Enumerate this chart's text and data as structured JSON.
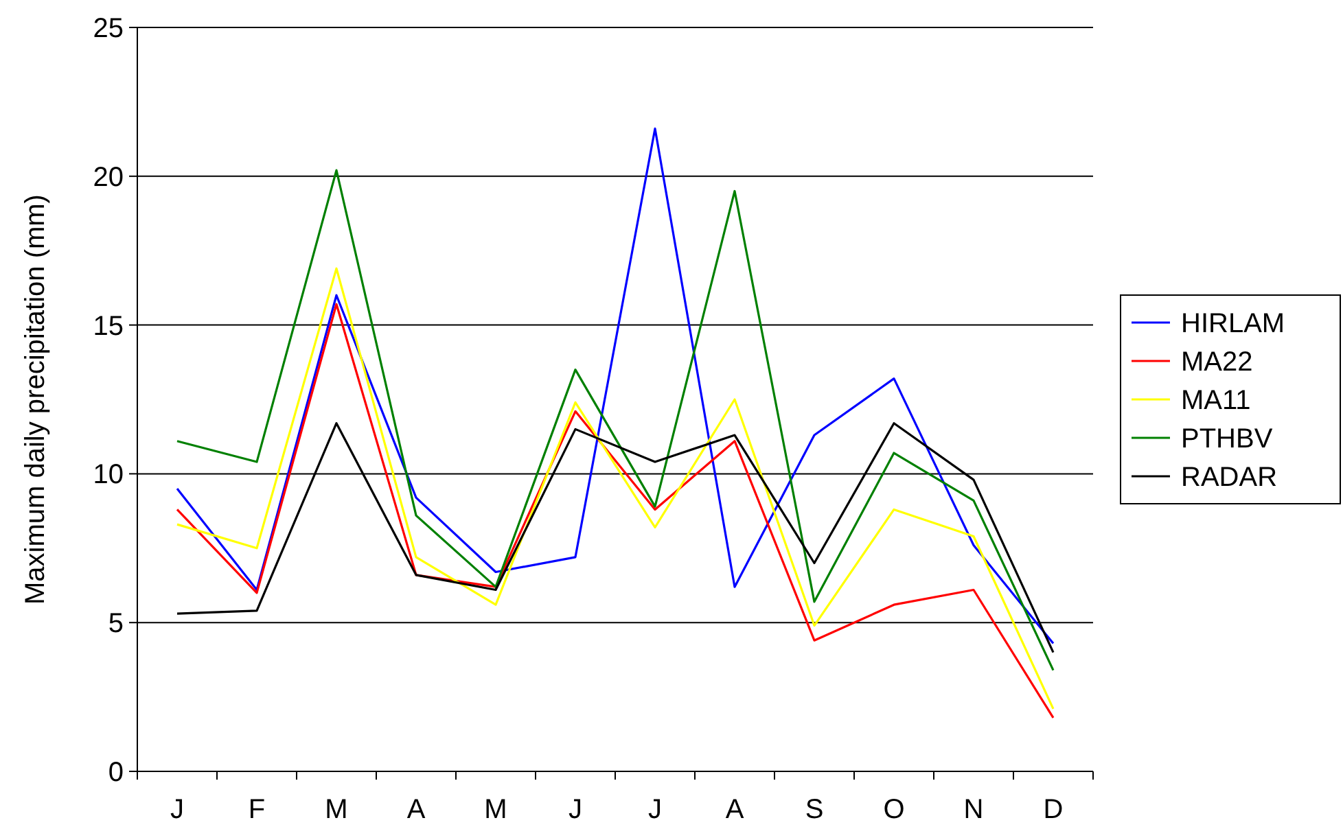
{
  "chart_data": {
    "type": "line",
    "ylabel": "Maximum daily precipitation (mm)",
    "categories": [
      "J",
      "F",
      "M",
      "A",
      "M",
      "J",
      "J",
      "A",
      "S",
      "O",
      "N",
      "D"
    ],
    "series": [
      {
        "name": "HIRLAM",
        "color": "#0000ff",
        "values": [
          9.5,
          6.1,
          16.0,
          9.2,
          6.7,
          7.2,
          21.6,
          6.2,
          11.3,
          13.2,
          7.6,
          4.3
        ]
      },
      {
        "name": "MA22",
        "color": "#ff0000",
        "values": [
          8.8,
          6.0,
          15.7,
          6.6,
          6.2,
          12.1,
          8.8,
          11.1,
          4.4,
          5.6,
          6.1,
          1.8
        ]
      },
      {
        "name": "MA11",
        "color": "#ffff00",
        "values": [
          8.3,
          7.5,
          16.9,
          7.2,
          5.6,
          12.4,
          8.2,
          12.5,
          4.9,
          8.8,
          7.9,
          2.1
        ]
      },
      {
        "name": "PTHBV",
        "color": "#008000",
        "values": [
          11.1,
          10.4,
          20.2,
          8.6,
          6.2,
          13.5,
          8.9,
          19.5,
          5.7,
          10.7,
          9.1,
          3.4
        ]
      },
      {
        "name": "RADAR",
        "color": "#000000",
        "values": [
          5.3,
          5.4,
          11.7,
          6.6,
          6.1,
          11.5,
          10.4,
          11.3,
          7.0,
          11.7,
          9.8,
          4.0
        ]
      }
    ],
    "ylim": [
      0,
      25
    ],
    "yticks": [
      0,
      5,
      10,
      15,
      20,
      25
    ],
    "grid": "y",
    "legend": "right",
    "marker": "none",
    "line_style": "solid"
  }
}
